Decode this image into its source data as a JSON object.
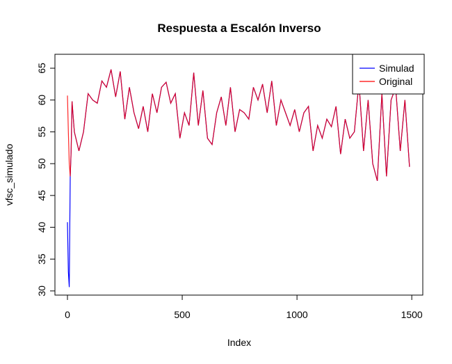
{
  "chart_data": {
    "type": "line",
    "title": "Respuesta a Escalón Inverso",
    "x_label": "Index",
    "y_label": "vfsc_simulado",
    "x": [
      0,
      4,
      8,
      12,
      16,
      20,
      30,
      50,
      70,
      90,
      110,
      130,
      150,
      170,
      190,
      210,
      230,
      250,
      270,
      290,
      310,
      330,
      350,
      370,
      390,
      410,
      430,
      450,
      470,
      490,
      510,
      530,
      550,
      570,
      590,
      610,
      630,
      650,
      670,
      690,
      710,
      730,
      750,
      770,
      790,
      810,
      830,
      850,
      870,
      890,
      910,
      930,
      950,
      970,
      990,
      1010,
      1030,
      1050,
      1070,
      1090,
      1110,
      1130,
      1150,
      1170,
      1190,
      1210,
      1230,
      1250,
      1270,
      1290,
      1310,
      1330,
      1350,
      1370,
      1390,
      1410,
      1430,
      1450,
      1470,
      1490
    ],
    "series": [
      {
        "name": "Simulad",
        "color": "#0000ff",
        "values": [
          40.8,
          33,
          30.6,
          48,
          52,
          59.8,
          55,
          52,
          55,
          61,
          60,
          59.5,
          63,
          62,
          64.8,
          60.5,
          64.5,
          57,
          62,
          58,
          55.5,
          59,
          55,
          61,
          58,
          62,
          62.8,
          59.5,
          61,
          54,
          58,
          56,
          64.3,
          56,
          61.5,
          54,
          53,
          58,
          60.5,
          56,
          62,
          55,
          58.5,
          58,
          57,
          62,
          60,
          62.5,
          58,
          63,
          56,
          60,
          58,
          56,
          58.5,
          55,
          58,
          59,
          52,
          56,
          54,
          57,
          55.8,
          59,
          51.5,
          57,
          54,
          55,
          62.8,
          52,
          60,
          50,
          47.3,
          61,
          48,
          60,
          62,
          52,
          60,
          49.5
        ]
      },
      {
        "name": "Original",
        "color": "#ff0000",
        "values": [
          60.7,
          55,
          50,
          48,
          52,
          59.8,
          55,
          52,
          55,
          61,
          60,
          59.5,
          63,
          62,
          64.8,
          60.5,
          64.5,
          57,
          62,
          58,
          55.5,
          59,
          55,
          61,
          58,
          62,
          62.8,
          59.5,
          61,
          54,
          58,
          56,
          64.3,
          56,
          61.5,
          54,
          53,
          58,
          60.5,
          56,
          62,
          55,
          58.5,
          58,
          57,
          62,
          60,
          62.5,
          58,
          63,
          56,
          60,
          58,
          56,
          58.5,
          55,
          58,
          59,
          52,
          56,
          54,
          57,
          55.8,
          59,
          51.5,
          57,
          54,
          55,
          62.8,
          52,
          60,
          50,
          47.3,
          61,
          48,
          60,
          62,
          52,
          60,
          49.5
        ]
      }
    ],
    "xlim": [
      -54.5,
      1548
    ],
    "ylim": [
      29.34,
      67.19
    ],
    "xticks": [
      0,
      500,
      1000,
      1500
    ],
    "yticks": [
      30,
      35,
      40,
      45,
      50,
      55,
      60,
      65
    ],
    "legend": "top-right"
  }
}
